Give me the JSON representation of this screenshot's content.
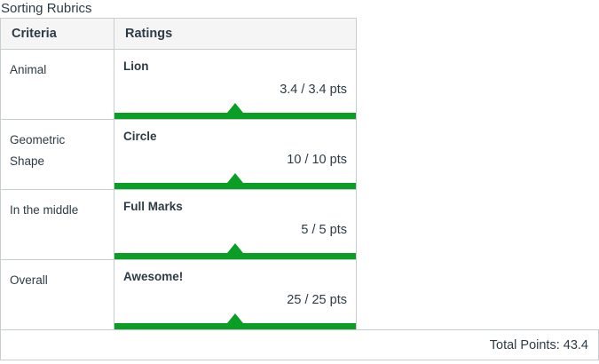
{
  "page_title": "Sorting Rubrics",
  "colors": {
    "text": "#2D3B45",
    "border": "#C7CDD1",
    "header_bg": "#F5F5F5",
    "green": "#0B9E24"
  },
  "icons": {
    "rating_marker": "triangle-up"
  },
  "table": {
    "headers": {
      "criteria": "Criteria",
      "ratings": "Ratings"
    },
    "rows": [
      {
        "criterion": "Animal",
        "rating": "Lion",
        "points": "3.4 / 3.4 pts"
      },
      {
        "criterion": "Geometric Shape",
        "rating": "Circle",
        "points": "10 / 10 pts"
      },
      {
        "criterion": "In the middle",
        "rating": "Full Marks",
        "points": "5 / 5 pts"
      },
      {
        "criterion": "Overall",
        "rating": "Awesome!",
        "points": "25 / 25 pts"
      }
    ],
    "footer": {
      "total_label": "Total Points: 43.4"
    }
  }
}
